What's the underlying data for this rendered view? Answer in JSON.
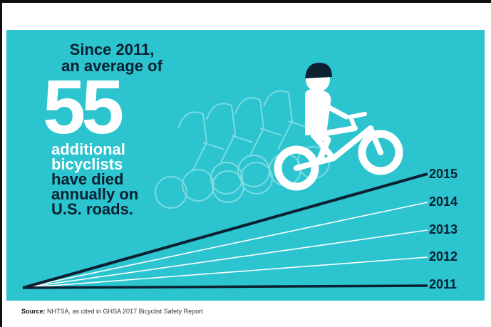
{
  "headline": {
    "line1": "Since 2011,",
    "line2": "an average of"
  },
  "big_number": "55",
  "description": {
    "white_line1": "additional",
    "white_line2": "bicyclists",
    "dark_line1": "have died",
    "dark_line2": "annually on",
    "dark_line3": "U.S. roads."
  },
  "years": [
    "2015",
    "2014",
    "2013",
    "2012",
    "2011"
  ],
  "source": {
    "label": "Source:",
    "text": " NHTSA, as cited in GHSA 2017 Bicyclist Safety Report"
  },
  "colors": {
    "background": "#2bc4cf",
    "dark": "#0b2030",
    "white": "#ffffff"
  },
  "icons": [
    "bicyclist-icon",
    "ghost-bicyclist-icon"
  ]
}
